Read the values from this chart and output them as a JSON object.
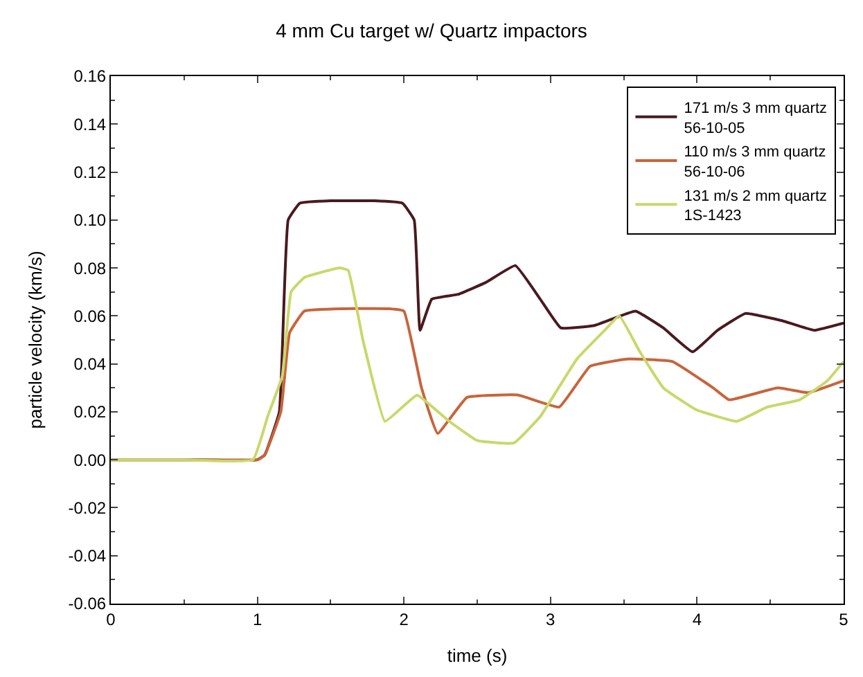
{
  "chart_data": {
    "type": "line",
    "title": "4 mm Cu target w/ Quartz impactors",
    "xlabel": "time (s)",
    "ylabel": "particle velocity (km/s)",
    "xlim": [
      0,
      5
    ],
    "xticks": [
      0,
      1,
      2,
      3,
      4,
      5
    ],
    "ylim": [
      -0.06,
      0.16
    ],
    "yticks": [
      {
        "value": -0.06,
        "label": "-0.06"
      },
      {
        "value": -0.04,
        "label": "-0.04"
      },
      {
        "value": -0.02,
        "label": "-0.02"
      },
      {
        "value": 0,
        "label": "0.00"
      },
      {
        "value": 0.02,
        "label": "0.02"
      },
      {
        "value": 0.04,
        "label": "0.04"
      },
      {
        "value": 0.06,
        "label": "0.06"
      },
      {
        "value": 0.08,
        "label": "0.08"
      },
      {
        "value": 0.1,
        "label": "0.10"
      },
      {
        "value": 0.12,
        "label": "0.12"
      },
      {
        "value": 0.14,
        "label": "0.14"
      },
      {
        "value": 0.16,
        "label": "0.16"
      }
    ],
    "legend": "top right",
    "marker": "none",
    "line_style": "solid",
    "series": [
      {
        "name": "171 m/s 3 mm quartz\n56-10-05",
        "color": "#4a1a1e",
        "x": [
          0,
          0.5,
          1.0,
          1.05,
          1.15,
          1.21,
          1.29,
          1.5,
          1.8,
          1.99,
          2.07,
          2.11,
          2.19,
          2.37,
          2.56,
          2.76,
          2.93,
          3.07,
          3.3,
          3.58,
          3.77,
          3.97,
          4.14,
          4.33,
          4.58,
          4.8,
          5.0
        ],
        "values": [
          0,
          0,
          0,
          0.002,
          0.02,
          0.1,
          0.107,
          0.108,
          0.108,
          0.107,
          0.1,
          0.054,
          0.067,
          0.069,
          0.074,
          0.081,
          0.067,
          0.055,
          0.056,
          0.062,
          0.055,
          0.045,
          0.054,
          0.061,
          0.058,
          0.054,
          0.057
        ]
      },
      {
        "name": "110 m/s 3 mm quartz\n56-10-06",
        "color": "#c8643c",
        "x": [
          0,
          0.5,
          1.0,
          1.05,
          1.16,
          1.22,
          1.32,
          1.6,
          1.9,
          2.0,
          2.12,
          2.23,
          2.43,
          2.78,
          3.06,
          3.27,
          3.52,
          3.83,
          4.11,
          4.22,
          4.55,
          4.76,
          5.0
        ],
        "values": [
          0,
          0,
          0,
          0.002,
          0.02,
          0.053,
          0.062,
          0.063,
          0.063,
          0.062,
          0.03,
          0.011,
          0.026,
          0.027,
          0.022,
          0.039,
          0.042,
          0.041,
          0.03,
          0.025,
          0.03,
          0.028,
          0.033
        ]
      },
      {
        "name": "131 m/s 2 mm quartz\n1S-1423",
        "color": "#c8d86a",
        "x": [
          0,
          0.5,
          0.97,
          1.07,
          1.17,
          1.23,
          1.32,
          1.56,
          1.62,
          1.72,
          1.87,
          1.99,
          2.09,
          2.31,
          2.5,
          2.75,
          2.93,
          3.18,
          3.37,
          3.47,
          3.61,
          3.77,
          3.99,
          4.27,
          4.48,
          4.7,
          4.89,
          5.0
        ],
        "values": [
          0,
          0,
          0,
          0.018,
          0.035,
          0.07,
          0.076,
          0.08,
          0.079,
          0.05,
          0.016,
          0.022,
          0.027,
          0.016,
          0.008,
          0.007,
          0.018,
          0.042,
          0.054,
          0.06,
          0.045,
          0.03,
          0.021,
          0.016,
          0.022,
          0.025,
          0.033,
          0.041
        ]
      }
    ]
  }
}
